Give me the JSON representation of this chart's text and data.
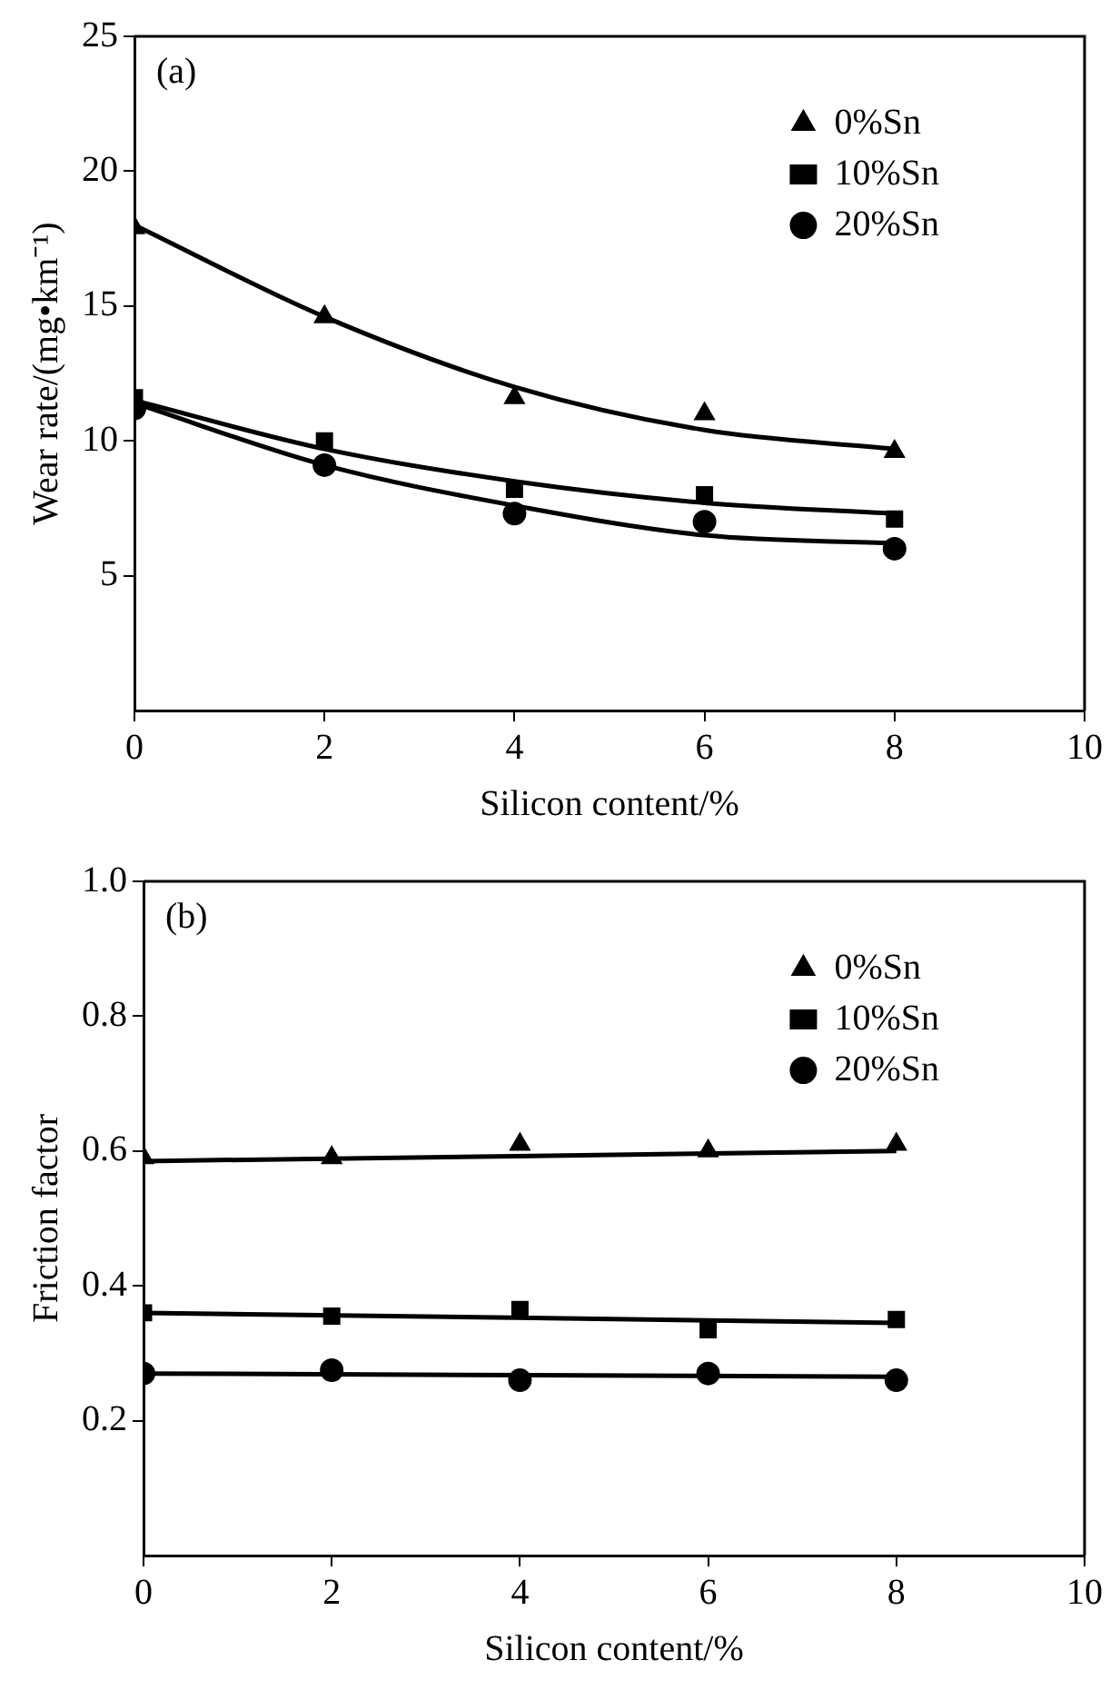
{
  "chart_data": [
    {
      "type": "scatter",
      "xlabel": "Silicon content/%",
      "ylabel": "Wear rate/(mg•km⁻¹)",
      "annotations": [
        "(a)"
      ],
      "xlim": [
        0,
        10
      ],
      "xticks": [
        0,
        2,
        4,
        6,
        8,
        10
      ],
      "ylim": [
        0,
        25
      ],
      "yticks": [
        5,
        10,
        15,
        20,
        25
      ],
      "grid": false,
      "legend": "top right",
      "series": [
        {
          "name": "0%Sn",
          "type": "scatter",
          "marker": "triangle",
          "color": "#000000",
          "x": [
            0,
            2,
            4,
            6,
            8
          ],
          "values": [
            17.9,
            14.6,
            11.6,
            11.0,
            9.6
          ]
        },
        {
          "name": "10%Sn",
          "type": "scatter",
          "marker": "square",
          "color": "#000000",
          "x": [
            0,
            2,
            4,
            6,
            8
          ],
          "values": [
            11.6,
            10.0,
            8.2,
            8.0,
            7.1
          ]
        },
        {
          "name": "20%Sn",
          "type": "scatter",
          "marker": "circle",
          "color": "#000000",
          "x": [
            0,
            2,
            4,
            6,
            8
          ],
          "values": [
            11.2,
            9.1,
            7.3,
            7.0,
            6.0
          ]
        },
        {
          "type": "line",
          "marker": "none",
          "line_style": "solid",
          "color": "#000000",
          "x": [
            0,
            2,
            4,
            6,
            8
          ],
          "values": [
            18.0,
            14.6,
            12.0,
            10.4,
            9.7
          ]
        },
        {
          "type": "line",
          "marker": "none",
          "line_style": "solid",
          "color": "#000000",
          "x": [
            0,
            2,
            4,
            6,
            8
          ],
          "values": [
            11.5,
            9.7,
            8.5,
            7.7,
            7.3
          ]
        },
        {
          "type": "line",
          "marker": "none",
          "line_style": "solid",
          "color": "#000000",
          "x": [
            0,
            2,
            4,
            6,
            8
          ],
          "values": [
            11.4,
            9.1,
            7.6,
            6.5,
            6.2
          ]
        }
      ]
    },
    {
      "type": "scatter",
      "xlabel": "Silicon content/%",
      "ylabel": "Friction factor",
      "annotations": [
        "(b)"
      ],
      "xlim": [
        0,
        10
      ],
      "xticks": [
        0,
        2,
        4,
        6,
        8,
        10
      ],
      "ylim": [
        0,
        1
      ],
      "yticks": [
        0.2,
        0.4,
        0.6,
        0.8,
        {
          "value": 1,
          "label": "1.0"
        }
      ],
      "grid": false,
      "legend": "top right",
      "series": [
        {
          "name": "0%Sn",
          "type": "scatter",
          "marker": "triangle",
          "color": "#000000",
          "x": [
            0,
            2,
            4,
            6,
            8
          ],
          "values": [
            0.59,
            0.59,
            0.61,
            0.6,
            0.61
          ]
        },
        {
          "name": "10%Sn",
          "type": "scatter",
          "marker": "square",
          "color": "#000000",
          "x": [
            0,
            2,
            4,
            6,
            8
          ],
          "values": [
            0.36,
            0.355,
            0.365,
            0.335,
            0.35
          ]
        },
        {
          "name": "20%Sn",
          "type": "scatter",
          "marker": "circle",
          "color": "#000000",
          "x": [
            0,
            2,
            4,
            6,
            8
          ],
          "values": [
            0.27,
            0.275,
            0.26,
            0.27,
            0.26
          ]
        },
        {
          "type": "line",
          "marker": "none",
          "line_style": "solid",
          "color": "#000000",
          "x": [
            0,
            8
          ],
          "values": [
            0.585,
            0.6
          ]
        },
        {
          "type": "line",
          "marker": "none",
          "line_style": "solid",
          "color": "#000000",
          "x": [
            0,
            8
          ],
          "values": [
            0.36,
            0.345
          ]
        },
        {
          "type": "line",
          "marker": "none",
          "line_style": "solid",
          "color": "#000000",
          "x": [
            0,
            8
          ],
          "values": [
            0.27,
            0.265
          ]
        }
      ]
    }
  ]
}
